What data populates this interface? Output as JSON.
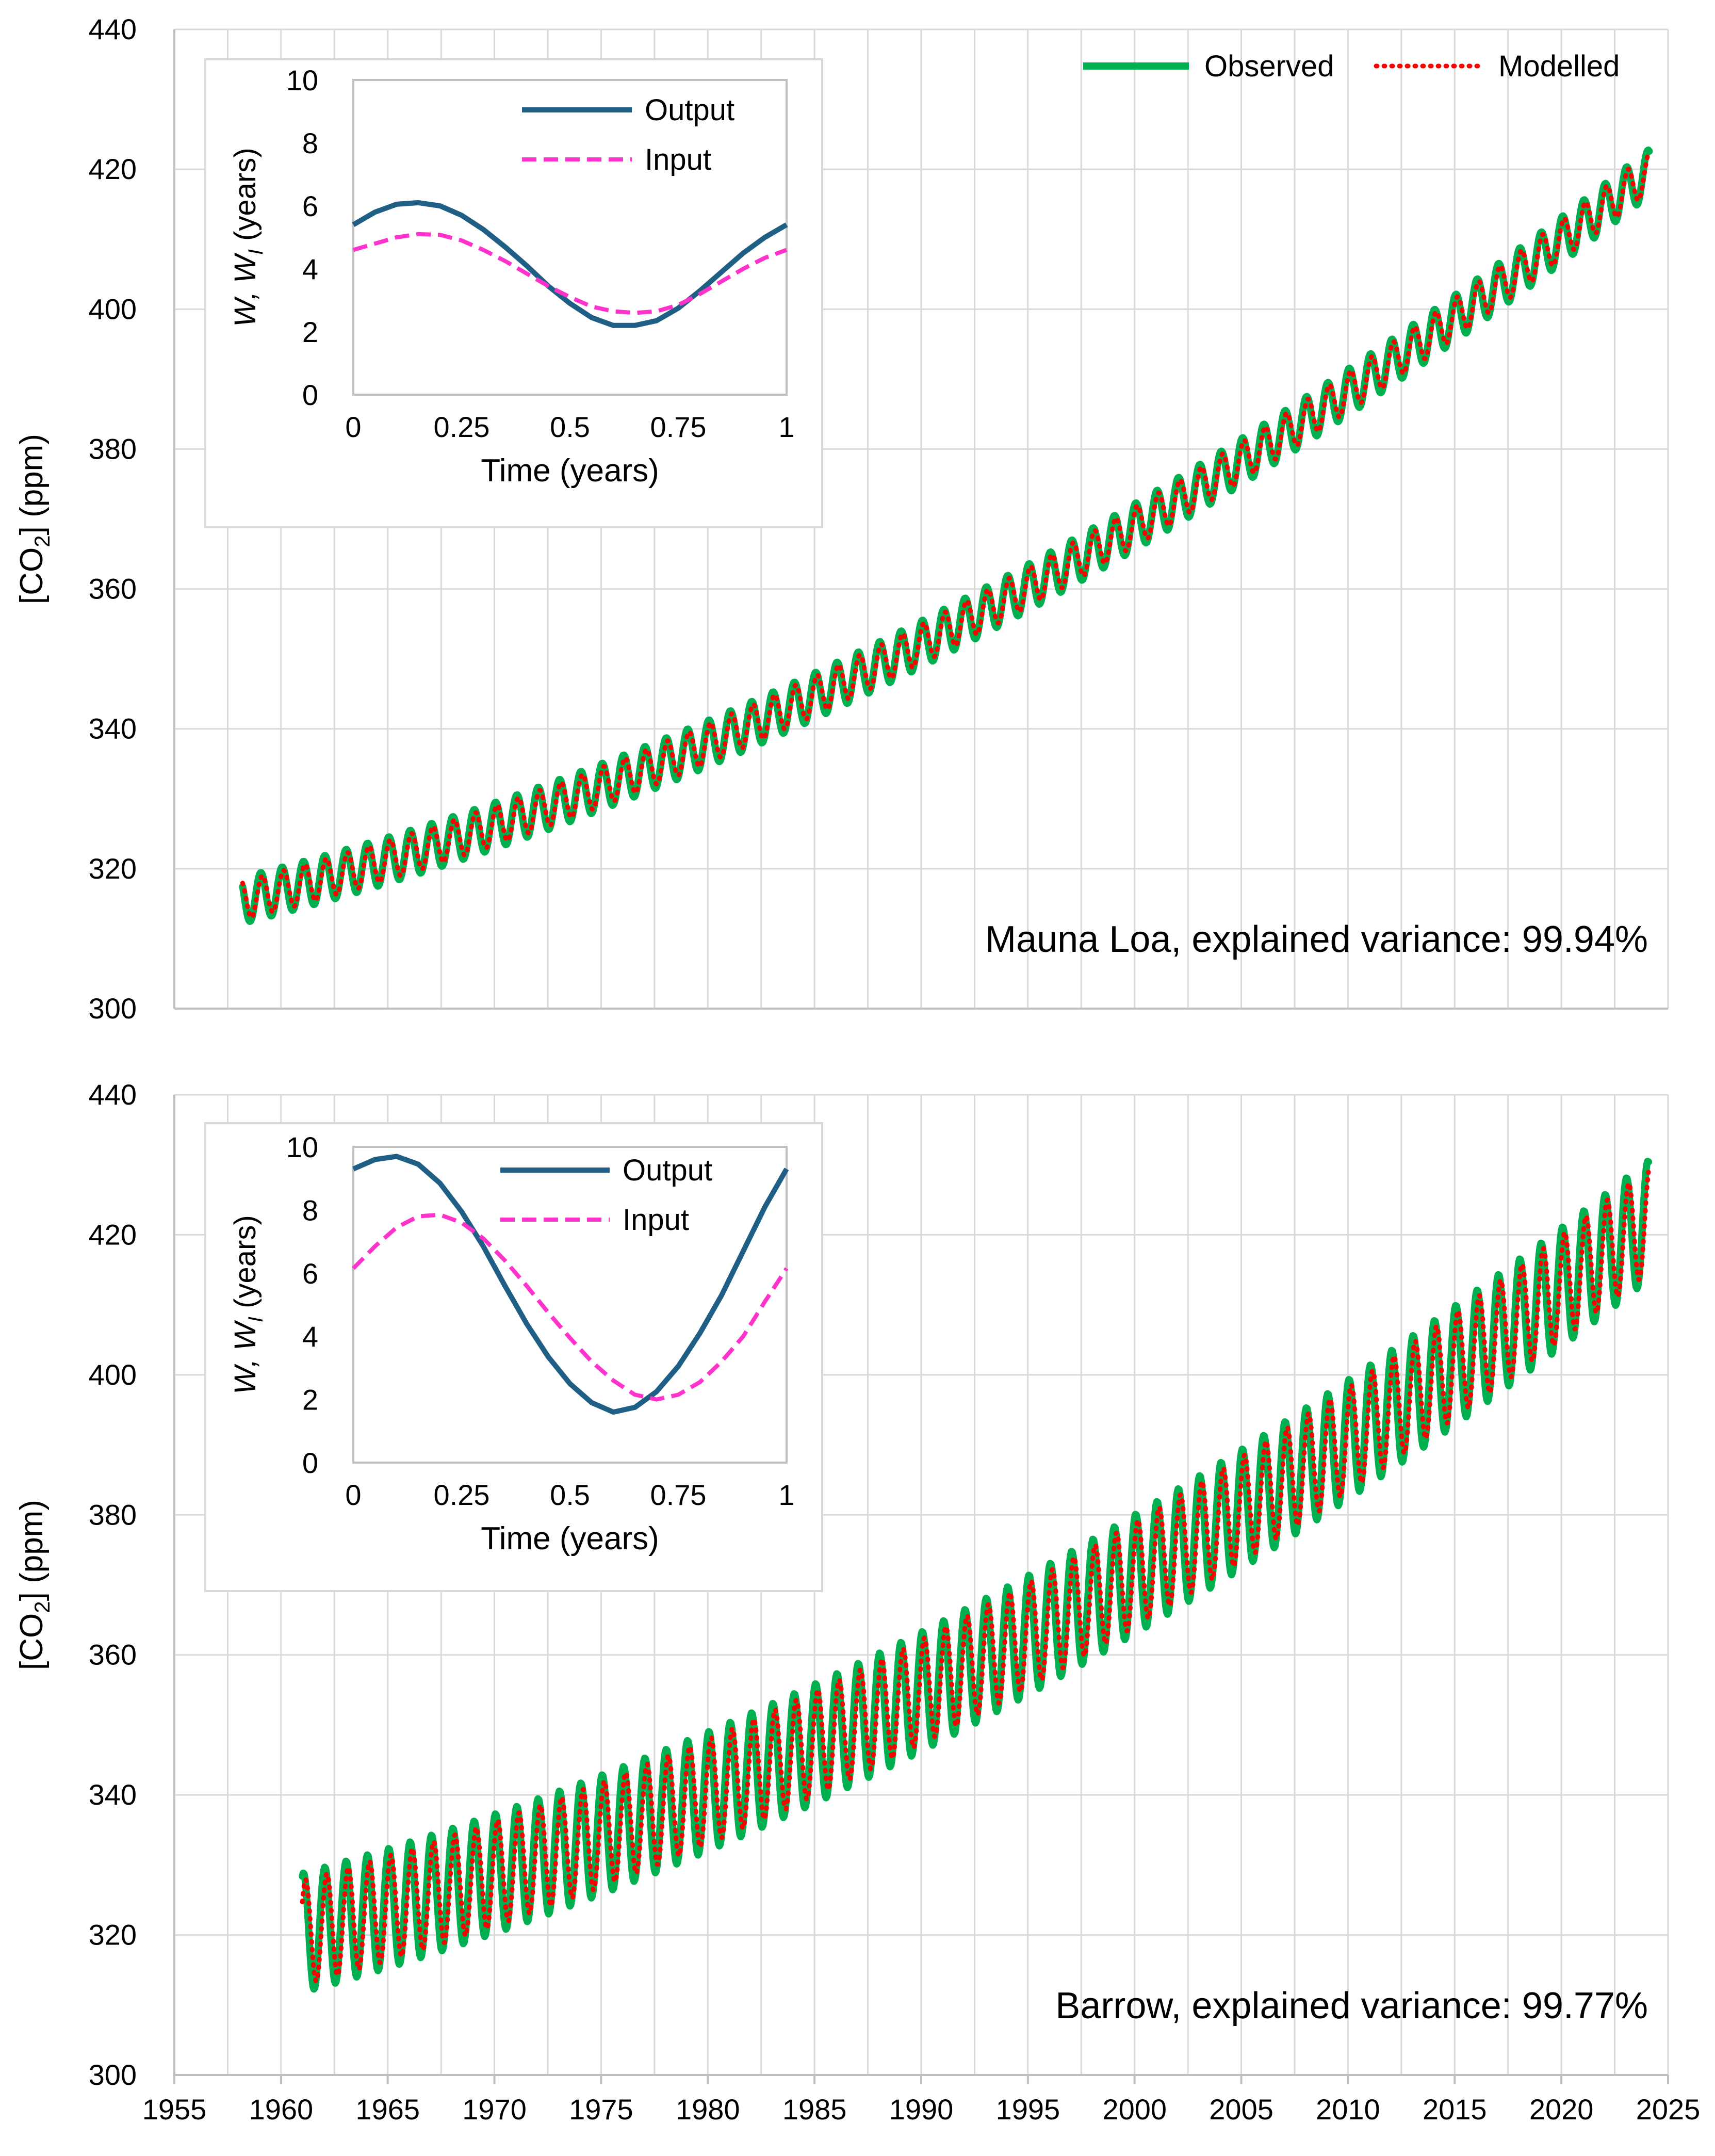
{
  "colors": {
    "observed": "#00B050",
    "modelled": "#FF0000",
    "output": "#1F5F85",
    "input": "#FF33CC",
    "grid": "#D9D9D9",
    "axis": "#BFBFBF",
    "inset_border": "#D9D9D9"
  },
  "legend": {
    "observed": "Observed",
    "modelled": "Modelled"
  },
  "inset_legend": {
    "output": "Output",
    "input": "Input"
  },
  "chart_data": [
    {
      "type": "line",
      "title": "",
      "annotation": "Mauna Loa, explained variance: 99.94%",
      "ylabel_main": "[CO",
      "ylabel_sub": "2",
      "ylabel_tail": "] (ppm)",
      "xlim": [
        1955,
        2025
      ],
      "ylim": [
        300,
        440
      ],
      "y_ticks": [
        300,
        320,
        340,
        360,
        380,
        400,
        420,
        440
      ],
      "x_tick_labels_shown": false,
      "grid": true,
      "legend_position": "top-right",
      "series": [
        {
          "name": "Observed",
          "start_year": 1958.2,
          "end_year": 2024.1,
          "base_1960": 316.9,
          "linear": 0.8,
          "quadratic": 0.0125,
          "amplitude": 3.3,
          "phase": 0.05
        },
        {
          "name": "Modelled",
          "start_year": 1958.2,
          "end_year": 2024.1,
          "base_1960": 316.9,
          "linear": 0.8,
          "quadratic": 0.0125,
          "amplitude": 2.8,
          "phase": 0.12
        }
      ],
      "inset": {
        "type": "line",
        "xlabel": "Time (years)",
        "ylabel_main": "W, W",
        "ylabel_sub": "I",
        "ylabel_tail": " (years)",
        "xlim": [
          0,
          1
        ],
        "ylim": [
          0,
          10
        ],
        "x_ticks": [
          "0",
          "0.25",
          "0.5",
          "0.75",
          "1"
        ],
        "y_ticks": [
          "0",
          "2",
          "4",
          "6",
          "8",
          "10"
        ],
        "series": [
          {
            "name": "Output",
            "x": [
              0,
              0.05,
              0.1,
              0.15,
              0.2,
              0.25,
              0.3,
              0.35,
              0.4,
              0.45,
              0.5,
              0.55,
              0.6,
              0.65,
              0.7,
              0.75,
              0.8,
              0.85,
              0.9,
              0.95,
              1.0
            ],
            "y": [
              5.4,
              5.8,
              6.05,
              6.1,
              6.0,
              5.7,
              5.25,
              4.7,
              4.1,
              3.45,
              2.9,
              2.45,
              2.2,
              2.2,
              2.35,
              2.75,
              3.3,
              3.9,
              4.5,
              5.0,
              5.4
            ]
          },
          {
            "name": "Input",
            "x": [
              0,
              0.05,
              0.1,
              0.15,
              0.2,
              0.25,
              0.3,
              0.35,
              0.4,
              0.45,
              0.5,
              0.55,
              0.6,
              0.65,
              0.7,
              0.75,
              0.8,
              0.85,
              0.9,
              0.95,
              1.0
            ],
            "y": [
              4.6,
              4.8,
              5.0,
              5.1,
              5.08,
              4.9,
              4.6,
              4.25,
              3.85,
              3.45,
              3.1,
              2.8,
              2.65,
              2.6,
              2.65,
              2.85,
              3.2,
              3.6,
              4.0,
              4.35,
              4.6
            ]
          }
        ]
      }
    },
    {
      "type": "line",
      "title": "",
      "annotation": "Barrow, explained variance: 99.77%",
      "ylabel_main": "[CO",
      "ylabel_sub": "2",
      "ylabel_tail": "] (ppm)",
      "xlim": [
        1955,
        2025
      ],
      "ylim": [
        300,
        440
      ],
      "y_ticks": [
        300,
        320,
        340,
        360,
        380,
        400,
        420,
        440
      ],
      "x_ticks": [
        1955,
        1960,
        1965,
        1970,
        1975,
        1980,
        1985,
        1990,
        1995,
        2000,
        2005,
        2010,
        2015,
        2020,
        2025
      ],
      "x_tick_labels_shown": true,
      "grid": true,
      "series": [
        {
          "name": "Observed",
          "start_year": 1961.0,
          "end_year": 2024.1,
          "base_1960": 319.5,
          "linear": 0.8,
          "quadratic": 0.0125,
          "amplitude": 8.5,
          "phase": 0.05
        },
        {
          "name": "Modelled",
          "start_year": 1961.0,
          "end_year": 2024.1,
          "base_1960": 319.5,
          "linear": 0.8,
          "quadratic": 0.0125,
          "amplitude": 7.5,
          "phase": 0.15
        }
      ],
      "inset": {
        "type": "line",
        "xlabel": "Time (years)",
        "ylabel_main": "W, W",
        "ylabel_sub": "I",
        "ylabel_tail": " (years)",
        "xlim": [
          0,
          1
        ],
        "ylim": [
          0,
          10
        ],
        "x_ticks": [
          "0",
          "0.25",
          "0.5",
          "0.75",
          "1"
        ],
        "y_ticks": [
          "0",
          "2",
          "4",
          "6",
          "8",
          "10"
        ],
        "series": [
          {
            "name": "Output",
            "x": [
              0,
              0.05,
              0.1,
              0.15,
              0.2,
              0.25,
              0.3,
              0.35,
              0.4,
              0.45,
              0.5,
              0.55,
              0.6,
              0.65,
              0.7,
              0.75,
              0.8,
              0.85,
              0.9,
              0.95,
              1.0
            ],
            "y": [
              9.3,
              9.6,
              9.7,
              9.45,
              8.85,
              7.95,
              6.85,
              5.6,
              4.4,
              3.35,
              2.5,
              1.9,
              1.6,
              1.75,
              2.25,
              3.05,
              4.1,
              5.3,
              6.7,
              8.1,
              9.3
            ]
          },
          {
            "name": "Input",
            "x": [
              0,
              0.05,
              0.1,
              0.15,
              0.2,
              0.25,
              0.3,
              0.35,
              0.4,
              0.45,
              0.5,
              0.55,
              0.6,
              0.65,
              0.7,
              0.75,
              0.8,
              0.85,
              0.9,
              0.95,
              1.0
            ],
            "y": [
              6.15,
              6.85,
              7.45,
              7.8,
              7.85,
              7.6,
              7.1,
              6.4,
              5.6,
              4.75,
              3.95,
              3.2,
              2.6,
              2.15,
              2.0,
              2.15,
              2.55,
              3.2,
              4.0,
              5.1,
              6.15
            ]
          }
        ]
      }
    }
  ]
}
